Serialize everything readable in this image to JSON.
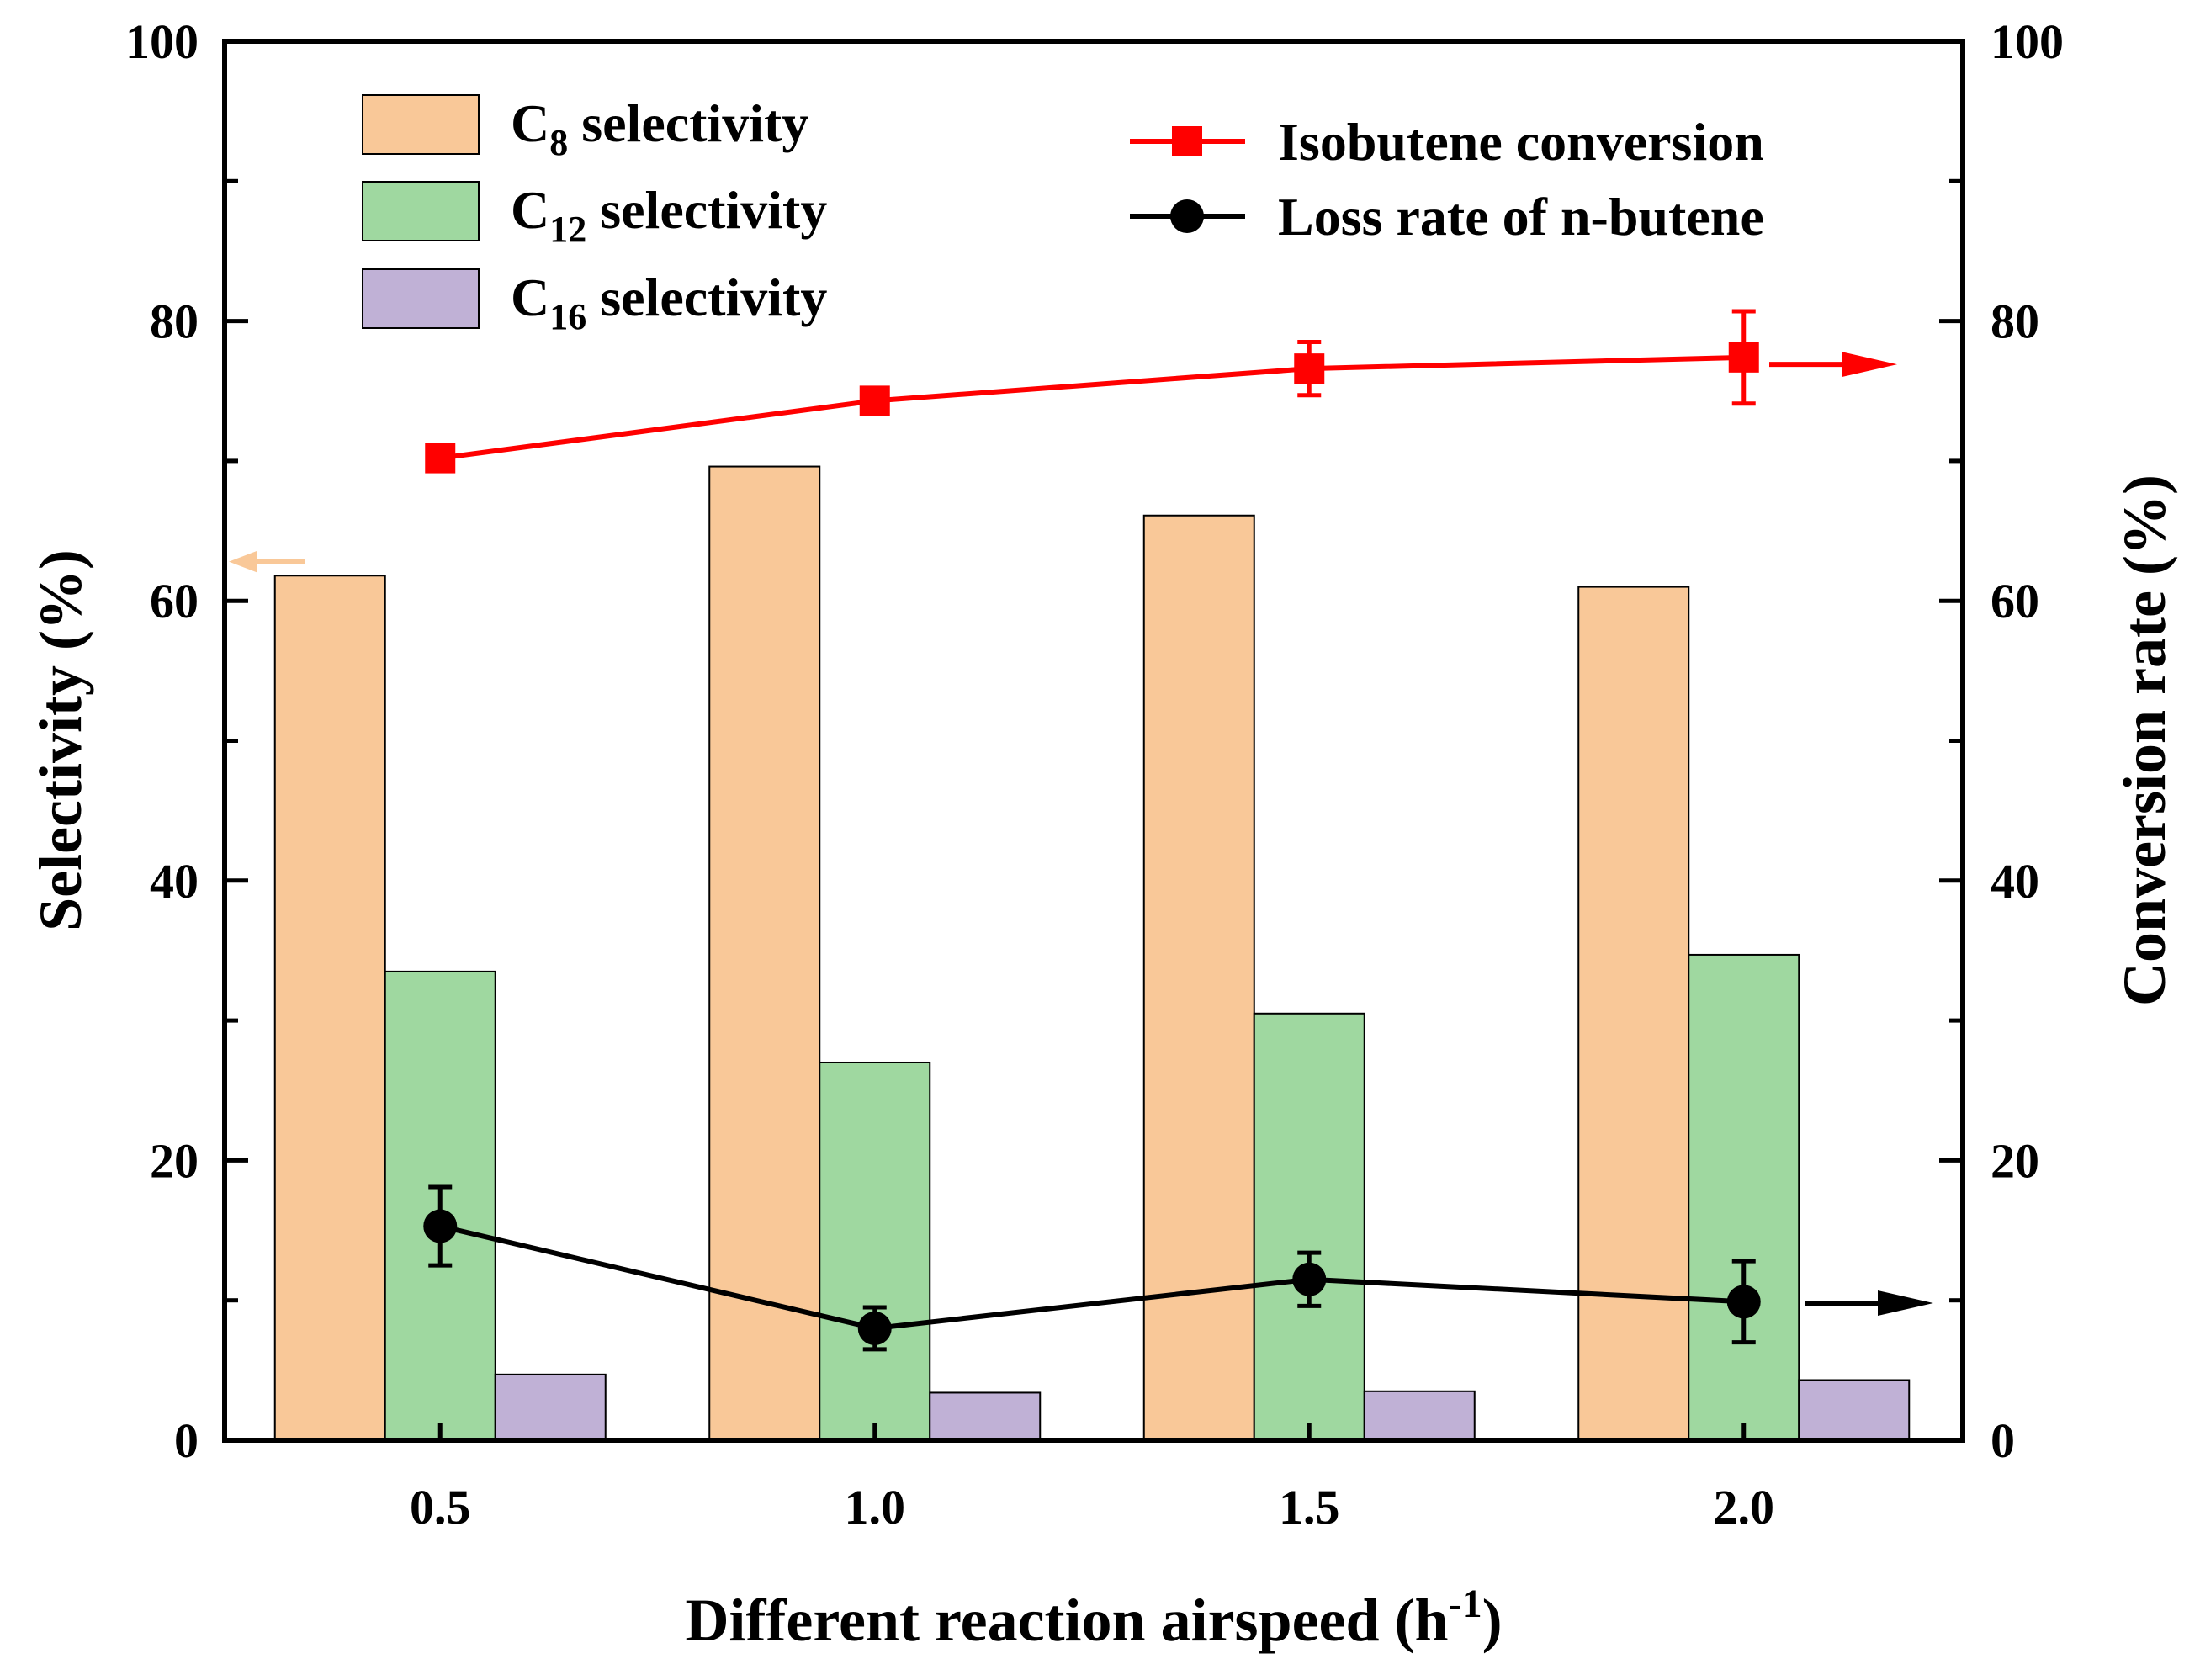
{
  "chart_data": {
    "type": "bar+line",
    "categories": [
      "0.5",
      "1.0",
      "1.5",
      "2.0"
    ],
    "xlabel": {
      "main": "Different reaction airspeed (h",
      "sup": "-1",
      "end": ")"
    },
    "y_left": {
      "label": "Selectivity (%)",
      "ylim": [
        0,
        100
      ],
      "ticks": [
        "0",
        "20",
        "40",
        "60",
        "80",
        "100"
      ]
    },
    "y_right": {
      "label": "Conversion rate (%)",
      "ylim": [
        0,
        100
      ],
      "ticks": [
        "0",
        "20",
        "40",
        "60",
        "80",
        "100"
      ]
    },
    "bar_series": [
      {
        "name": "C8 selectivity",
        "legend_main": "C",
        "legend_sub": "8",
        "legend_rest": " selectivity",
        "color": "#F9C898",
        "values": [
          61.8,
          69.6,
          66.1,
          61.0
        ]
      },
      {
        "name": "C12 selectivity",
        "legend_main": "C",
        "legend_sub": "12",
        "legend_rest": " selectivity",
        "color": "#9FD8A0",
        "values": [
          33.5,
          27.0,
          30.5,
          34.7
        ]
      },
      {
        "name": "C16 selectivity",
        "legend_main": "C",
        "legend_sub": "16",
        "legend_rest": " selectivity",
        "color": "#C0B1D6",
        "values": [
          4.7,
          3.4,
          3.5,
          4.3
        ]
      }
    ],
    "line_series": [
      {
        "name": "Isobutene conversion",
        "color": "#FF0000",
        "marker": "square",
        "axis": "right",
        "values": [
          70.2,
          74.3,
          76.6,
          77.4
        ],
        "errors": [
          0.0,
          0.5,
          1.9,
          3.3
        ]
      },
      {
        "name": "Loss rate of n-butene",
        "color": "#000000",
        "marker": "circle",
        "axis": "right",
        "values": [
          15.3,
          8.0,
          11.5,
          9.9
        ],
        "errors": [
          2.8,
          1.5,
          1.9,
          2.9
        ]
      }
    ],
    "axis_indicators": [
      {
        "name": "left-axis-arrow",
        "color": "#F9C898",
        "direction": "left",
        "at_value": 62.8
      },
      {
        "name": "isobutene-right-arrow",
        "color": "#FF0000",
        "direction": "right",
        "at_value": 76.9
      },
      {
        "name": "loss-right-arrow",
        "color": "#000000",
        "direction": "right",
        "at_value": 9.8
      }
    ]
  }
}
